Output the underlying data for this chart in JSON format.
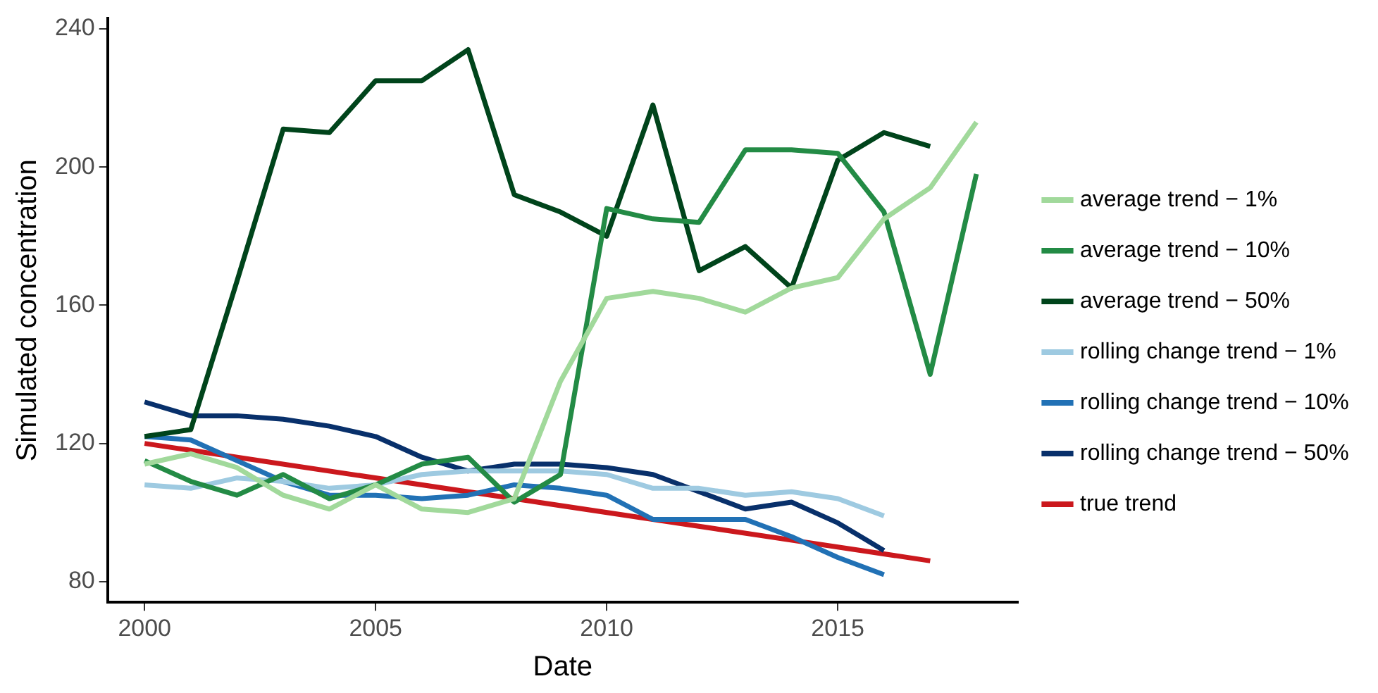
{
  "chart_data": {
    "type": "line",
    "xlabel": "Date",
    "ylabel": "Simulated concentration",
    "x": [
      2000,
      2001,
      2002,
      2003,
      2004,
      2005,
      2006,
      2007,
      2008,
      2009,
      2010,
      2011,
      2012,
      2013,
      2014,
      2015,
      2016,
      2017,
      2018
    ],
    "xlim": [
      1999.2,
      2018.9
    ],
    "xticks": [
      2000,
      2005,
      2010,
      2015
    ],
    "ylim": [
      74,
      243
    ],
    "yticks": [
      80,
      120,
      160,
      200,
      240
    ],
    "grid": false,
    "legend": "right",
    "marker": "none",
    "line_style": "solid",
    "series": [
      {
        "name": "average trend − 1%",
        "color": "#a1d99b",
        "values": [
          114,
          117,
          113,
          105,
          101,
          108,
          101,
          100,
          104,
          138,
          162,
          164,
          162,
          158,
          165,
          168,
          185,
          194,
          213
        ]
      },
      {
        "name": "average trend − 10%",
        "color": "#238b45",
        "values": [
          115,
          109,
          105,
          111,
          104,
          108,
          114,
          116,
          103,
          111,
          188,
          185,
          184,
          205,
          205,
          204,
          187,
          140,
          198
        ]
      },
      {
        "name": "average trend − 50%",
        "color": "#00441b",
        "values": [
          122,
          124,
          167,
          211,
          210,
          225,
          225,
          234,
          192,
          187,
          180,
          218,
          170,
          177,
          165,
          202,
          210,
          206,
          null
        ]
      },
      {
        "name": "rolling change trend − 1%",
        "color": "#9ecae1",
        "values": [
          108,
          107,
          110,
          109,
          107,
          108,
          111,
          112,
          112,
          112,
          111,
          107,
          107,
          105,
          106,
          104,
          99,
          null,
          null
        ]
      },
      {
        "name": "rolling change trend − 10%",
        "color": "#2171b5",
        "values": [
          122,
          121,
          115,
          109,
          105,
          105,
          104,
          105,
          108,
          107,
          105,
          98,
          98,
          98,
          93,
          87,
          82,
          null,
          null
        ]
      },
      {
        "name": "rolling change trend − 50%",
        "color": "#08306b",
        "values": [
          132,
          128,
          128,
          127,
          125,
          122,
          116,
          112,
          114,
          114,
          113,
          111,
          106,
          101,
          103,
          97,
          89,
          null,
          null
        ]
      },
      {
        "name": "true trend",
        "color": "#cb181d",
        "x": [
          2000,
          2017
        ],
        "values": [
          120,
          86
        ]
      }
    ]
  }
}
